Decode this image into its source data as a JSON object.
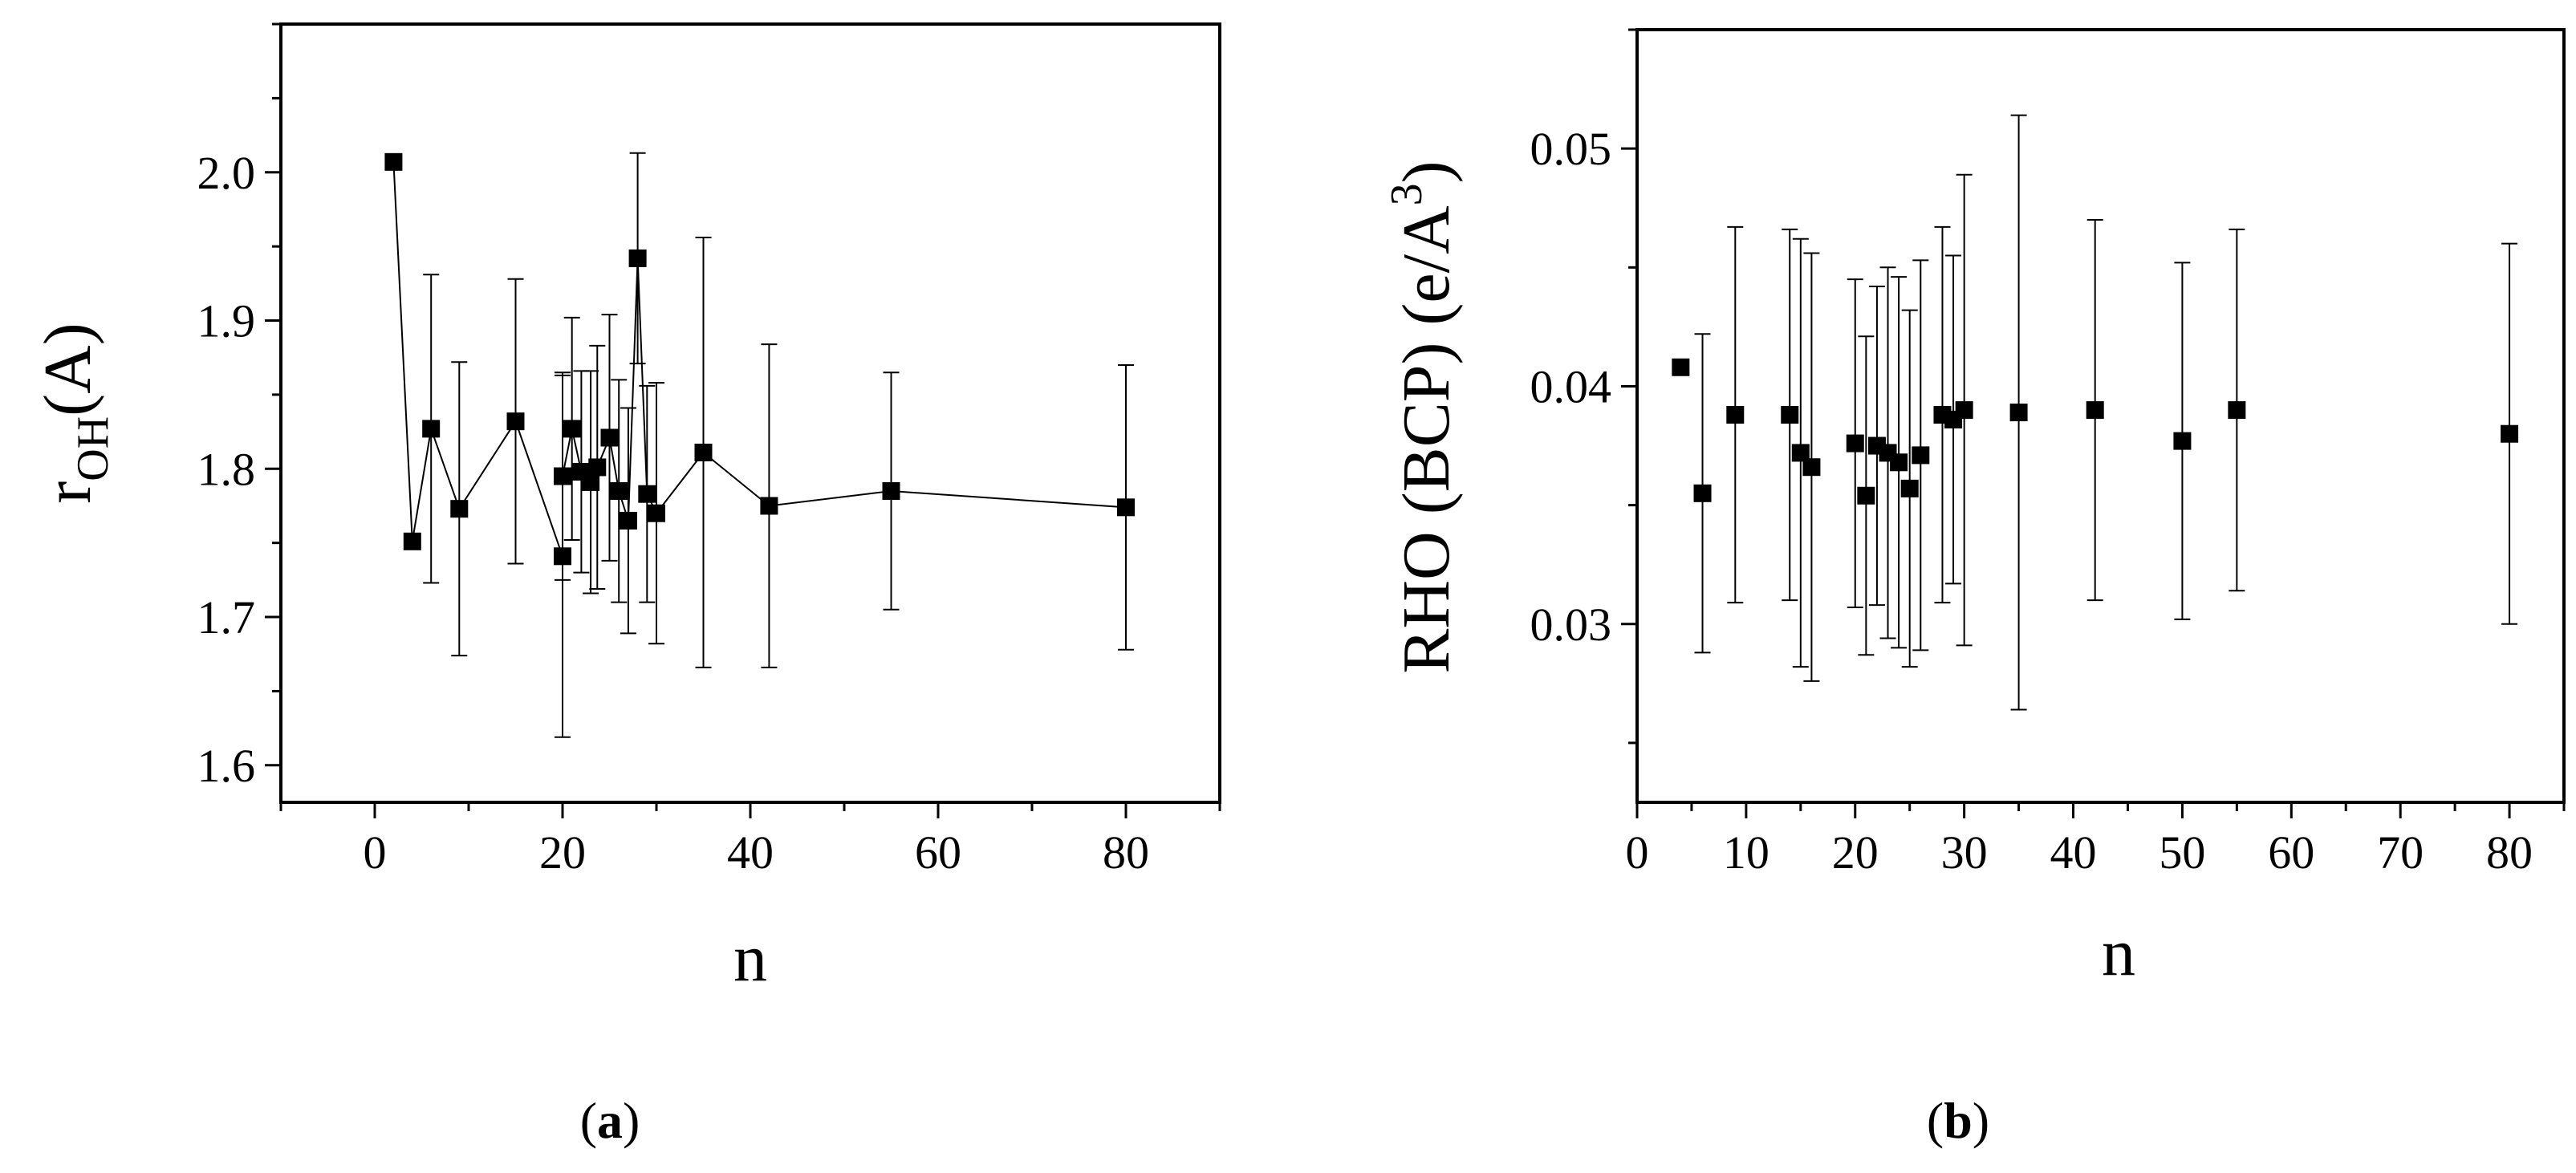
{
  "chart_data": [
    {
      "type": "scatter",
      "panel": "a",
      "panel_label": {
        "open": "(",
        "letter": "a",
        "close": ")"
      },
      "connected": true,
      "xlabel": "n",
      "ylabel": {
        "main": "r",
        "sub": "OH",
        "suffix": "(A)"
      },
      "xlim": [
        -10,
        90
      ],
      "ylim": [
        1.575,
        2.1
      ],
      "xticks": [
        0,
        20,
        40,
        60,
        80
      ],
      "xtick_labels": [
        "0",
        "20",
        "40",
        "60",
        "80"
      ],
      "yticks": [
        1.6,
        1.7,
        1.8,
        1.9,
        2.0
      ],
      "ytick_labels": [
        "1.6",
        "1.7",
        "1.8",
        "1.9",
        "2.0"
      ],
      "points": [
        {
          "x": 2,
          "y": 2.007,
          "err": null
        },
        {
          "x": 4,
          "y": 1.751,
          "err": null
        },
        {
          "x": 6,
          "y": 1.827,
          "err": 0.104
        },
        {
          "x": 9,
          "y": 1.773,
          "err": 0.099
        },
        {
          "x": 15,
          "y": 1.832,
          "err": 0.096
        },
        {
          "x": 20,
          "y": 1.741,
          "err": 0.122
        },
        {
          "x": 20,
          "y": 1.795,
          "err": 0.07
        },
        {
          "x": 21,
          "y": 1.827,
          "err": 0.075
        },
        {
          "x": 22,
          "y": 1.798,
          "err": 0.068
        },
        {
          "x": 23,
          "y": 1.791,
          "err": 0.075
        },
        {
          "x": 23.7,
          "y": 1.801,
          "err": 0.082
        },
        {
          "x": 25,
          "y": 1.821,
          "err": 0.083
        },
        {
          "x": 26,
          "y": 1.785,
          "err": 0.075
        },
        {
          "x": 27,
          "y": 1.765,
          "err": 0.076
        },
        {
          "x": 28,
          "y": 1.942,
          "err": 0.071
        },
        {
          "x": 29,
          "y": 1.783,
          "err": 0.073
        },
        {
          "x": 30,
          "y": 1.77,
          "err": 0.088
        },
        {
          "x": 35,
          "y": 1.811,
          "err": 0.145
        },
        {
          "x": 42,
          "y": 1.775,
          "err": 0.109
        },
        {
          "x": 55,
          "y": 1.785,
          "err": 0.08
        },
        {
          "x": 80,
          "y": 1.774,
          "err": 0.096
        }
      ]
    },
    {
      "type": "scatter",
      "panel": "b",
      "panel_label": {
        "open": "(",
        "letter": "b",
        "close": ")"
      },
      "connected": false,
      "xlabel": "n",
      "ylabel": {
        "main": "RHO (BCP) (e/A",
        "sup": "3",
        "suffix": ")"
      },
      "xlim": [
        0,
        85
      ],
      "ylim": [
        0.0225,
        0.055
      ],
      "xticks": [
        0,
        10,
        20,
        30,
        40,
        50,
        60,
        70,
        80
      ],
      "xtick_labels": [
        "0",
        "10",
        "20",
        "30",
        "40",
        "50",
        "60",
        "70",
        "80"
      ],
      "yticks": [
        0.03,
        0.04,
        0.05
      ],
      "ytick_labels": [
        "0.03",
        "0.04",
        "0.05"
      ],
      "points": [
        {
          "x": 4,
          "y": 0.0408,
          "err": null
        },
        {
          "x": 6,
          "y": 0.0355,
          "err": 0.0067
        },
        {
          "x": 9,
          "y": 0.0388,
          "err": 0.0079
        },
        {
          "x": 14,
          "y": 0.0388,
          "err": 0.0078
        },
        {
          "x": 15,
          "y": 0.0372,
          "err": 0.009
        },
        {
          "x": 16,
          "y": 0.0366,
          "err": 0.009
        },
        {
          "x": 20,
          "y": 0.0376,
          "err": 0.0069
        },
        {
          "x": 21,
          "y": 0.0354,
          "err": 0.0067
        },
        {
          "x": 22,
          "y": 0.0375,
          "err": 0.0067
        },
        {
          "x": 23,
          "y": 0.0372,
          "err": 0.0078
        },
        {
          "x": 24,
          "y": 0.0368,
          "err": 0.0078
        },
        {
          "x": 25,
          "y": 0.0357,
          "err": 0.0075
        },
        {
          "x": 26,
          "y": 0.0371,
          "err": 0.0082
        },
        {
          "x": 28,
          "y": 0.0388,
          "err": 0.0079
        },
        {
          "x": 29,
          "y": 0.0386,
          "err": 0.0069
        },
        {
          "x": 30,
          "y": 0.039,
          "err": 0.0099
        },
        {
          "x": 35,
          "y": 0.0389,
          "err": 0.0125
        },
        {
          "x": 42,
          "y": 0.039,
          "err": 0.008
        },
        {
          "x": 50,
          "y": 0.0377,
          "err": 0.0075
        },
        {
          "x": 55,
          "y": 0.039,
          "err": 0.0076
        },
        {
          "x": 80,
          "y": 0.038,
          "err": 0.008
        }
      ]
    }
  ]
}
